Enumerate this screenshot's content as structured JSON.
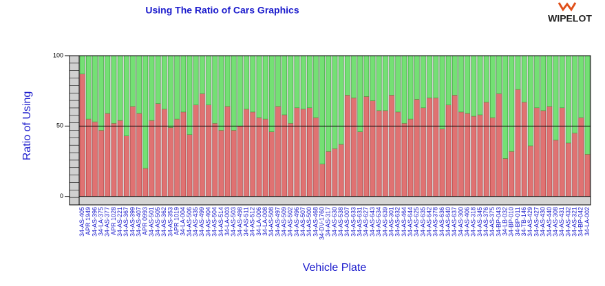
{
  "brand": "WIPELOT",
  "chart_data": {
    "type": "stacked_bar",
    "title": "Using The Ratio of Cars Graphics",
    "x_label": "Vehicle Plate",
    "y_label": "Ratio of Using",
    "categories": [
      "34-AS-405",
      "APR 1949",
      "34-AS-396",
      "34-LA-375",
      "34-AS-377",
      "APR 1028",
      "34-AS-221",
      "34-AS-367",
      "34-AS-399",
      "34-AS-407",
      "APR 0993",
      "34-AS-501",
      "34-AS-505",
      "34-AS-362",
      "34-AS-353",
      "APR 1019",
      "34-LA-004",
      "34-AS-506",
      "34-AS-435",
      "34-AS-499",
      "34-AS-404",
      "34-AS-504",
      "34-AS-514",
      "34-LA-003",
      "34-AS-503",
      "34-AS-498",
      "34-AS-511",
      "34-AS-512",
      "34-LA-006",
      "34-LA-008",
      "34-AS-508",
      "34-AS-497",
      "34-AS-509",
      "34-AS-502",
      "34-AS-496",
      "34-AS-507",
      "34-AS-500",
      "34-AS-468",
      "34-DV-1760",
      "34-AS-317",
      "34-AS-630",
      "34-AS-538",
      "34-AS-007",
      "34-AS-633",
      "34-AS-631",
      "34-AS-627",
      "34-AS-643",
      "34-AS-634",
      "34-AS-639",
      "34-AS-301",
      "34-AS-632",
      "34-AS-464",
      "34-AS-644",
      "34-AS-625",
      "34-AS-635",
      "34-AS-642",
      "34-AS-378",
      "34-AS-636",
      "34-AS-640",
      "34-AS-637",
      "34-AS-300",
      "34-AS-406",
      "34-AS-318",
      "34-AS-345",
      "34-AS-376",
      "34-AS-375",
      "34-BP-043",
      "34-LB-032",
      "34-BP-010",
      "34-BP-011",
      "34-TB-146",
      "34-AS-429",
      "34-AS-427",
      "34-AS-430",
      "34-AS-440",
      "34-AS-308",
      "34-AS-431",
      "34-AS-432",
      "34-AS-321",
      "34-BP-042",
      "34-LA-002"
    ],
    "series": [
      {
        "color": "#e07272",
        "values": [
          87,
          55,
          53,
          47,
          59,
          52,
          54,
          43,
          64,
          59,
          20,
          54,
          66,
          62,
          49,
          55,
          60,
          44,
          65,
          73,
          65,
          52,
          47,
          64,
          47,
          50,
          62,
          60,
          56,
          55,
          46,
          64,
          58,
          52,
          63,
          62,
          63,
          56,
          23,
          32,
          34,
          37,
          72,
          70,
          46,
          71,
          68,
          61,
          61,
          72,
          60,
          52,
          55,
          69,
          63,
          70,
          70,
          48,
          65,
          72,
          60,
          59,
          57,
          58,
          67,
          56,
          73,
          27,
          32,
          76,
          67,
          36,
          63,
          61,
          64,
          40,
          63,
          38,
          45,
          56,
          30
        ]
      },
      {
        "color": "#74e074",
        "values": [
          13,
          45,
          47,
          53,
          41,
          48,
          46,
          57,
          36,
          41,
          80,
          46,
          34,
          38,
          51,
          45,
          40,
          56,
          35,
          27,
          35,
          48,
          53,
          36,
          53,
          50,
          38,
          40,
          44,
          45,
          54,
          36,
          42,
          48,
          37,
          38,
          37,
          44,
          77,
          68,
          66,
          63,
          28,
          30,
          54,
          29,
          32,
          39,
          39,
          28,
          40,
          48,
          45,
          31,
          37,
          30,
          30,
          52,
          35,
          28,
          40,
          41,
          43,
          42,
          33,
          44,
          27,
          73,
          68,
          24,
          33,
          64,
          37,
          39,
          36,
          60,
          37,
          62,
          55,
          44,
          70
        ]
      }
    ],
    "ylim": [
      -6,
      100
    ],
    "yticks": [
      0,
      50,
      100
    ],
    "grid": true
  }
}
